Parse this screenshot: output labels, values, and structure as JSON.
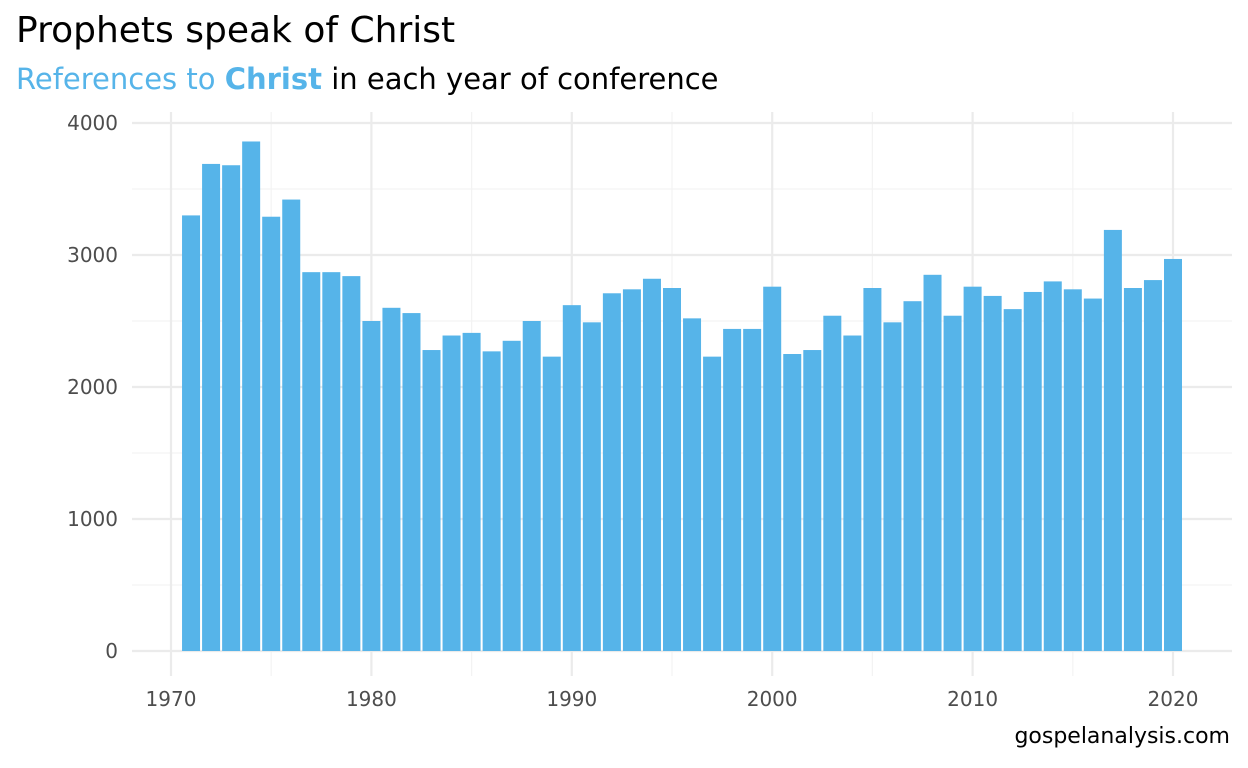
{
  "title": "Prophets speak of Christ",
  "subtitle": {
    "part1": "References to",
    "highlight": "Christ",
    "part2": "in each year of conference"
  },
  "caption": "gospelanalysis.com",
  "colors": {
    "bar": "#56b4e9",
    "accent": "#56b4e9",
    "grid_major": "#ebebeb",
    "grid_minor": "#f3f3f3",
    "tick_text": "#4d4d4d"
  },
  "chart_data": {
    "type": "bar",
    "title": "Prophets speak of Christ",
    "subtitle": "References to Christ in each year of conference",
    "xlabel": "",
    "ylabel": "",
    "xlim": [
      1969,
      2023
    ],
    "ylim": [
      0,
      4000
    ],
    "x_ticks": [
      1970,
      1980,
      1990,
      2000,
      2010,
      2020
    ],
    "y_ticks": [
      0,
      1000,
      2000,
      3000,
      4000
    ],
    "grid": true,
    "x": [
      1971,
      1972,
      1973,
      1974,
      1975,
      1976,
      1977,
      1978,
      1979,
      1980,
      1981,
      1982,
      1983,
      1984,
      1985,
      1986,
      1987,
      1988,
      1989,
      1990,
      1991,
      1992,
      1993,
      1994,
      1995,
      1996,
      1997,
      1998,
      1999,
      2000,
      2001,
      2002,
      2003,
      2004,
      2005,
      2006,
      2007,
      2008,
      2009,
      2010,
      2011,
      2012,
      2013,
      2014,
      2015,
      2016,
      2017,
      2018,
      2019,
      2020
    ],
    "values": [
      3300,
      3690,
      3680,
      3860,
      3290,
      3420,
      2870,
      2870,
      2840,
      2500,
      2600,
      2560,
      2280,
      2390,
      2410,
      2270,
      2350,
      2500,
      2230,
      2620,
      2490,
      2710,
      2740,
      2820,
      2750,
      2520,
      2230,
      2440,
      2440,
      2760,
      2250,
      2280,
      2540,
      2390,
      2750,
      2490,
      2650,
      2850,
      2540,
      2760,
      2690,
      2590,
      2720,
      2800,
      2740,
      2670,
      3190,
      2750,
      2810,
      2970
    ]
  }
}
